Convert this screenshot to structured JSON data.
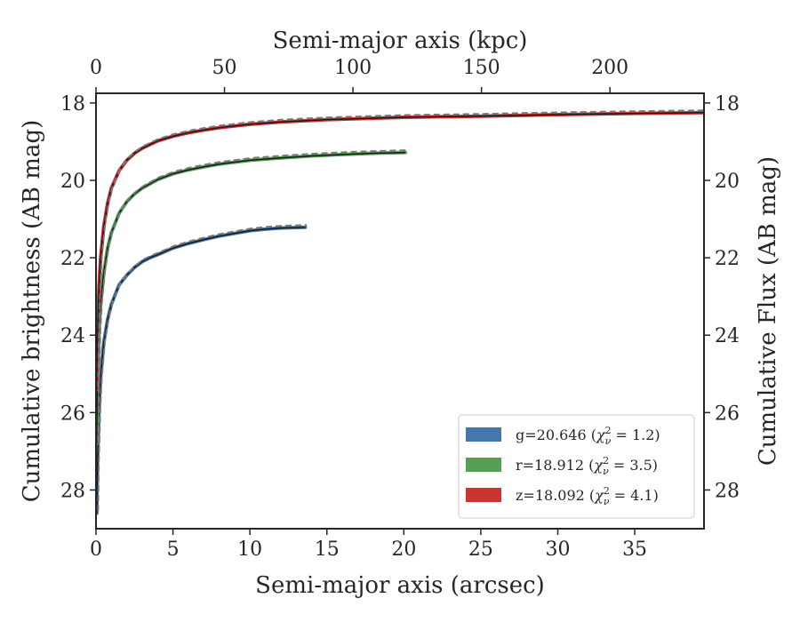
{
  "chart_data": {
    "type": "line",
    "xlabel_bottom": "Semi-major axis (arcsec)",
    "xlabel_top": "Semi-major axis (kpc)",
    "ylabel_left": "Cumulative brightness (AB mag)",
    "ylabel_right": "Cumulative Flux (AB mag)",
    "xlim": [
      0,
      39.5
    ],
    "xlim_top": [
      0,
      236.6
    ],
    "ylim": [
      29,
      17.75
    ],
    "y_inverted": true,
    "xticks_bottom": [
      "0",
      "5",
      "10",
      "15",
      "20",
      "25",
      "30",
      "35"
    ],
    "xticks_top": [
      "0",
      "50",
      "100",
      "150",
      "200"
    ],
    "yticks": [
      "18",
      "20",
      "22",
      "24",
      "26",
      "28"
    ],
    "grid": false,
    "legend_position": "lower-right",
    "series": [
      {
        "name": "g=20.646 (χ²ν = 1.2)",
        "legend_parts": {
          "prefix": "g=20.646 (",
          "chi": "χ",
          "sup": "2",
          "sub": "ν",
          "suffix": " = 1.2)"
        },
        "color": "#4477aa",
        "x": [
          0.05,
          0.1,
          0.2,
          0.3,
          0.5,
          0.75,
          1.0,
          1.5,
          2.0,
          2.5,
          3.0,
          3.5,
          4.0,
          5.0,
          6.0,
          7.0,
          8.0,
          9.0,
          10.0,
          11.0,
          12.0,
          13.0,
          13.6
        ],
        "y": [
          28.6,
          27.3,
          25.9,
          25.1,
          24.2,
          23.6,
          23.2,
          22.7,
          22.45,
          22.25,
          22.1,
          22.0,
          21.92,
          21.75,
          21.63,
          21.53,
          21.44,
          21.37,
          21.3,
          21.26,
          21.23,
          21.22,
          21.21
        ]
      },
      {
        "name": "r=18.912 (χ²ν = 3.5)",
        "legend_parts": {
          "prefix": "r=18.912 (",
          "chi": "χ",
          "sup": "2",
          "sub": "ν",
          "suffix": " = 3.5)"
        },
        "color": "#55a055",
        "x": [
          0.05,
          0.1,
          0.2,
          0.3,
          0.5,
          0.75,
          1.0,
          1.5,
          2.0,
          2.5,
          3.0,
          4.0,
          5.0,
          6.0,
          7.0,
          8.0,
          10.0,
          12.0,
          14.0,
          16.0,
          18.0,
          20.1
        ],
        "y": [
          26.8,
          25.3,
          23.9,
          23.2,
          22.4,
          21.75,
          21.35,
          20.85,
          20.55,
          20.35,
          20.2,
          19.98,
          19.83,
          19.73,
          19.65,
          19.58,
          19.48,
          19.42,
          19.37,
          19.33,
          19.3,
          19.28
        ]
      },
      {
        "name": "z=18.092 (χ²ν = 4.1)",
        "legend_parts": {
          "prefix": "z=18.092 (",
          "chi": "χ",
          "sup": "2",
          "sub": "ν",
          "suffix": " = 4.1)"
        },
        "color": "#cc3333",
        "x": [
          0.05,
          0.1,
          0.2,
          0.3,
          0.5,
          0.75,
          1.0,
          1.5,
          2.0,
          2.5,
          3.0,
          4.0,
          5.0,
          6.0,
          7.0,
          8.0,
          10.0,
          12.0,
          15.0,
          20.0,
          25.0,
          30.0,
          35.0,
          39.5
        ],
        "y": [
          25.4,
          24.0,
          22.7,
          22.0,
          21.2,
          20.6,
          20.2,
          19.75,
          19.48,
          19.3,
          19.17,
          18.98,
          18.86,
          18.77,
          18.7,
          18.64,
          18.55,
          18.49,
          18.43,
          18.37,
          18.34,
          18.3,
          18.27,
          18.25
        ]
      }
    ]
  }
}
